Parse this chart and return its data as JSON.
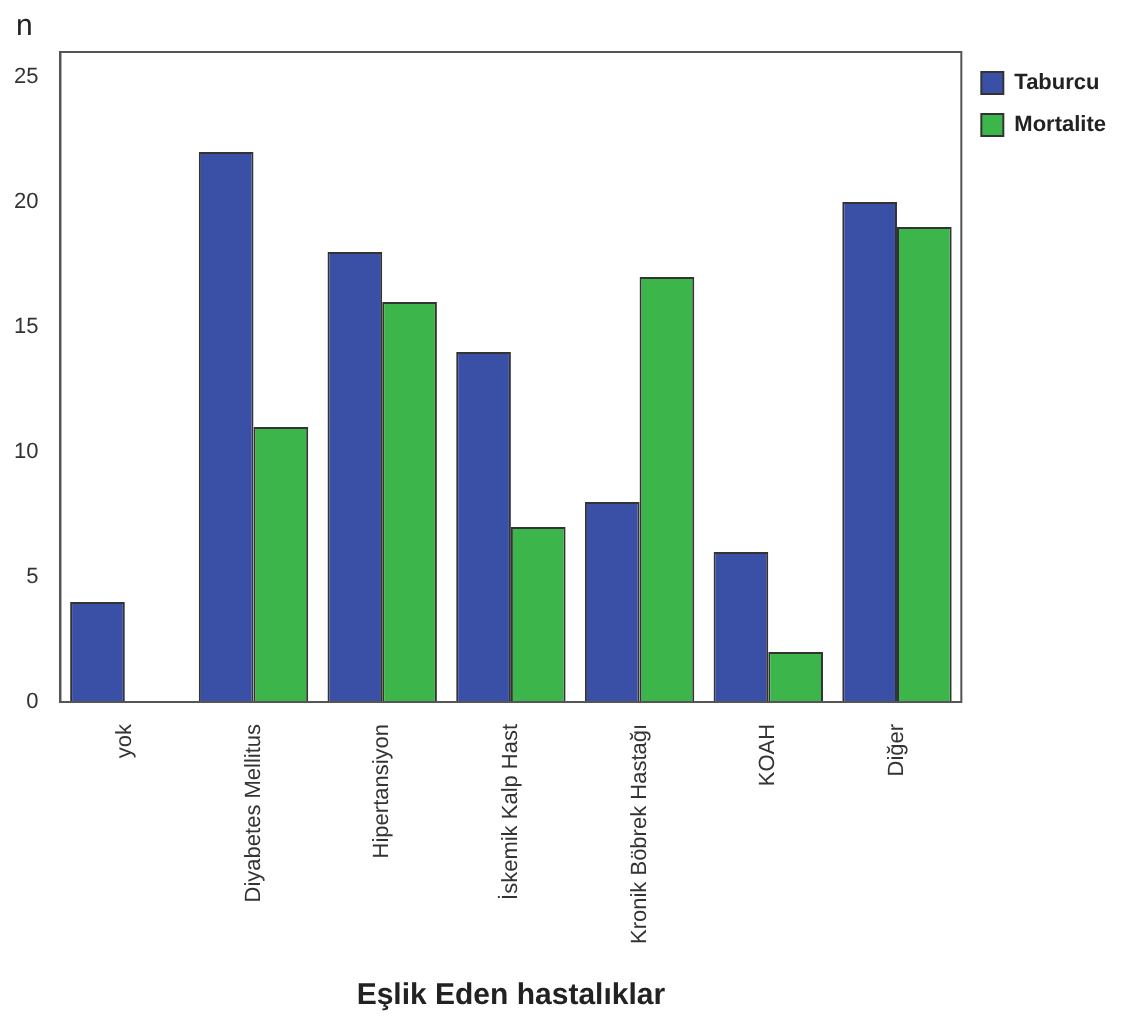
{
  "chart_data": {
    "type": "bar",
    "xlabel": "Eşlik Eden hastalıklar",
    "ylabel": "n",
    "categories": [
      "yok",
      "Diyabetes Mellitus",
      "Hipertansiyon",
      "İskemik Kalp Hast",
      "Kronik Böbrek Hastağı",
      "KOAH",
      "Diğer"
    ],
    "series": [
      {
        "name": "Taburcu",
        "color": "#3a4fa6",
        "values": [
          4,
          22,
          18,
          14,
          8,
          6,
          20
        ]
      },
      {
        "name": "Mortalite",
        "color": "#3cb54a",
        "values": [
          0,
          11,
          16,
          7,
          17,
          2,
          19
        ]
      }
    ],
    "ylim": [
      0,
      26
    ],
    "yticks": [
      0,
      5,
      10,
      15,
      20,
      25
    ],
    "grid": false,
    "legend": "right"
  }
}
